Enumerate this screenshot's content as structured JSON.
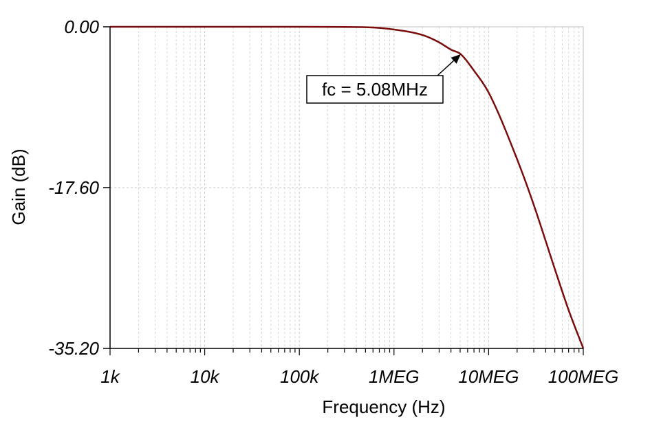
{
  "chart_data": {
    "type": "line",
    "title": "",
    "xlabel": "Frequency (Hz)",
    "ylabel": "Gain (dB)",
    "x_scale": "log",
    "xlim": [
      1000,
      100000000
    ],
    "ylim": [
      -35.2,
      0.0
    ],
    "x_ticks": [
      {
        "value": 1000,
        "label": "1k"
      },
      {
        "value": 10000,
        "label": "10k"
      },
      {
        "value": 100000,
        "label": "100k"
      },
      {
        "value": 1000000,
        "label": "1MEG"
      },
      {
        "value": 10000000,
        "label": "10MEG"
      },
      {
        "value": 100000000,
        "label": "100MEG"
      }
    ],
    "y_ticks": [
      {
        "value": 0.0,
        "label": "0.00"
      },
      {
        "value": -17.6,
        "label": "-17.60"
      },
      {
        "value": -35.2,
        "label": "-35.20"
      }
    ],
    "grid": true,
    "series": [
      {
        "color": "#7a0c0c",
        "x": [
          1000,
          10000,
          100000,
          500000,
          1000000,
          2000000,
          3000000,
          4000000,
          5080000,
          7000000,
          10000000,
          20000000,
          30000000,
          50000000,
          70000000,
          100000000
        ],
        "y": [
          0.0,
          0.0,
          0.0,
          -0.05,
          -0.3,
          -0.9,
          -1.7,
          -2.5,
          -3.0,
          -4.8,
          -7.2,
          -14.5,
          -19.5,
          -26.5,
          -31.0,
          -35.2
        ]
      }
    ],
    "annotations": [
      {
        "text": "fc = 5.08MHz",
        "x": 5080000,
        "y": -3.0,
        "arrow": true
      }
    ]
  }
}
